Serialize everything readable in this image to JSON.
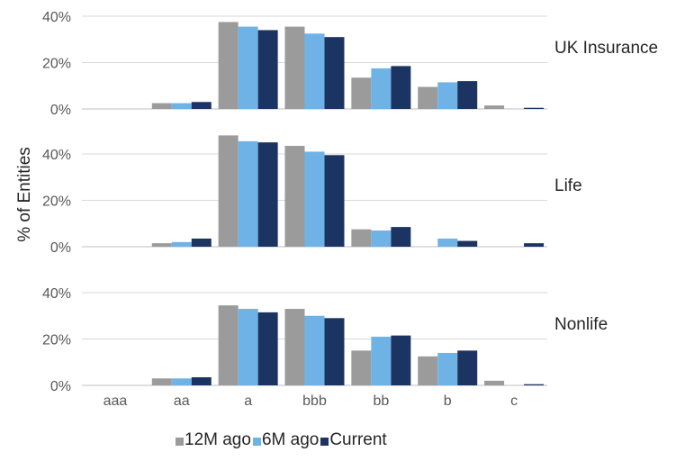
{
  "chart_data": {
    "type": "bar",
    "ylabel": "% of Entities",
    "categories": [
      "aaa",
      "aa",
      "a",
      "bbb",
      "bb",
      "b",
      "c"
    ],
    "ylim": [
      0,
      40
    ],
    "yticks": [
      "0%",
      "20%",
      "40%"
    ],
    "grid": true,
    "legend_position": "bottom",
    "colors": {
      "12M ago": "#9b9b9b",
      "6M ago": "#6fb3e6",
      "Current": "#1c3461"
    },
    "panels": [
      {
        "label": "UK Insurance",
        "series": [
          {
            "name": "12M ago",
            "values": [
              0,
              2.5,
              37.5,
              35.5,
              13.5,
              9.5,
              1.5
            ]
          },
          {
            "name": "6M ago",
            "values": [
              0,
              2.5,
              35.5,
              32.5,
              17.5,
              11.5,
              0
            ]
          },
          {
            "name": "Current",
            "values": [
              0,
              3.0,
              34.0,
              31.0,
              18.5,
              12.0,
              0.5
            ]
          }
        ]
      },
      {
        "label": "Life",
        "series": [
          {
            "name": "12M ago",
            "values": [
              0,
              1.5,
              48.0,
              43.5,
              7.5,
              0,
              0
            ]
          },
          {
            "name": "6M ago",
            "values": [
              0,
              2.0,
              45.5,
              41.0,
              7.0,
              3.5,
              0
            ]
          },
          {
            "name": "Current",
            "values": [
              0,
              3.5,
              45.0,
              39.5,
              8.5,
              2.5,
              1.5
            ]
          }
        ]
      },
      {
        "label": "Nonlife",
        "series": [
          {
            "name": "12M ago",
            "values": [
              0,
              3.0,
              34.5,
              33.0,
              15.0,
              12.5,
              2.0
            ]
          },
          {
            "name": "6M ago",
            "values": [
              0,
              3.0,
              33.0,
              30.0,
              21.0,
              14.0,
              0
            ]
          },
          {
            "name": "Current",
            "values": [
              0,
              3.5,
              31.5,
              29.0,
              21.5,
              15.0,
              0.5
            ]
          }
        ]
      }
    ]
  }
}
